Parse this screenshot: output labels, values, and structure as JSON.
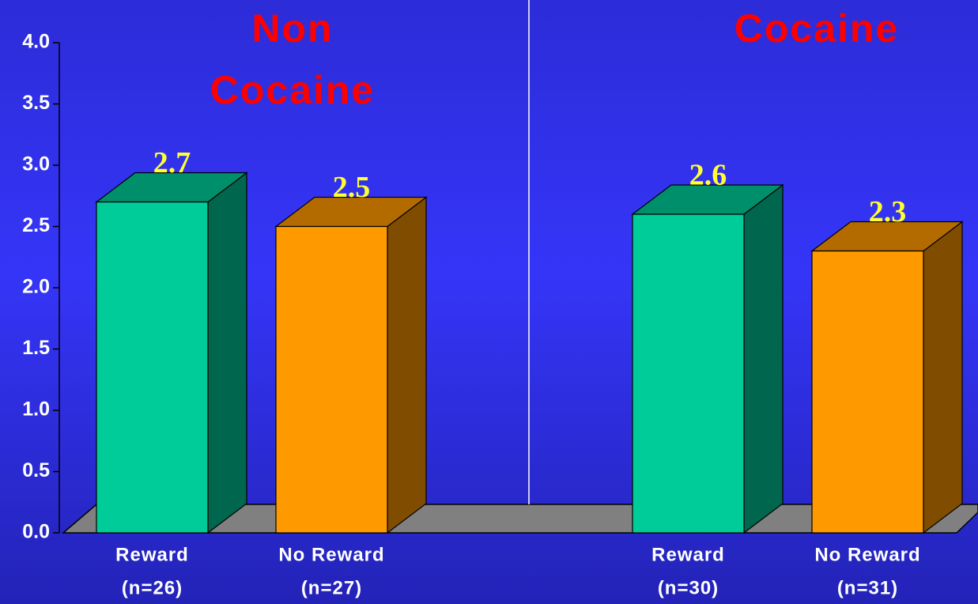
{
  "chart_data": {
    "type": "bar3d",
    "groups": [
      {
        "title": [
          "Non",
          "Cocaine"
        ]
      },
      {
        "title": [
          "Cocaine"
        ]
      }
    ],
    "categories": [
      "Reward",
      "No Reward",
      "Reward",
      "No Reward"
    ],
    "sample_sizes": [
      "(n=26)",
      "(n=27)",
      "(n=30)",
      "(n=31)"
    ],
    "values": [
      2.7,
      2.5,
      2.6,
      2.3
    ],
    "colors": [
      "#00cc99",
      "#ff9900",
      "#00cc99",
      "#ff9900"
    ],
    "ylim": [
      0,
      4
    ],
    "yticks": [
      {
        "value": 0,
        "label": "0.0"
      },
      {
        "value": 0.5,
        "label": "0.5"
      },
      {
        "value": 1,
        "label": "1.0"
      },
      {
        "value": 1.5,
        "label": "1.5"
      },
      {
        "value": 2,
        "label": "2.0"
      },
      {
        "value": 2.5,
        "label": "2.5"
      },
      {
        "value": 3,
        "label": "3.0"
      },
      {
        "value": 3.5,
        "label": "3.5"
      },
      {
        "value": 4,
        "label": "4.0"
      }
    ]
  }
}
